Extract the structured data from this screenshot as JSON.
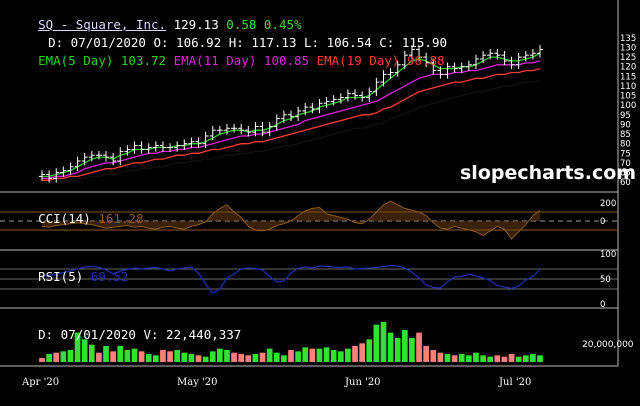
{
  "header": {
    "ticker": "SQ - Square, Inc.",
    "last": "129.13",
    "change": "0.58",
    "change_pct": "0.45%",
    "date_label": "D: 07/01/2020",
    "open": "O: 106.92",
    "high": "H: 117.13",
    "low": "L: 106.54",
    "close": "C: 115.90",
    "ema5_label": "EMA(5 Day)",
    "ema5_value": "103.72",
    "ema11_label": "EMA(11 Day)",
    "ema11_value": "100.85",
    "ema19_label": "EMA(19 Day)",
    "ema19_value": "96.88"
  },
  "watermark": "slopecharts.com",
  "cci": {
    "label": "CCI(14)",
    "value": "161.28",
    "ticks": [
      "200",
      "0"
    ]
  },
  "rsi": {
    "label": "RSI(5)",
    "value": "69.52",
    "ticks": [
      "100",
      "50",
      "0"
    ]
  },
  "volume_panel": {
    "label": "D: 07/01/2020",
    "volume_label": "V: 22,440,337",
    "scale_label": "20,000,000"
  },
  "x_labels": [
    "Apr '20",
    "May '20",
    "Jun '20",
    "Jul '20"
  ],
  "colors": {
    "ema5": "#2ecc2e",
    "ema11": "#e022e0",
    "ema19": "#ff3b3b",
    "ema_long": "#000000",
    "cci": "#8a5a1a",
    "rsi": "#1f2fb0",
    "vol_up": "#33e033",
    "vol_down": "#ff7f7f"
  },
  "chart_data": [
    {
      "type": "line",
      "title": "SQ - Square, Inc.",
      "y_ticks": [
        135,
        130,
        125,
        120,
        115,
        110,
        105,
        100,
        95,
        90,
        85,
        80,
        75,
        70,
        65,
        60
      ],
      "ylim": [
        58,
        137
      ],
      "series": [
        {
          "name": "Price",
          "style": "bars",
          "values": [
            64,
            62,
            65,
            66,
            68,
            71,
            73,
            74,
            74,
            73,
            71,
            76,
            77,
            79,
            77,
            78,
            79,
            78,
            78,
            79,
            80,
            81,
            80,
            84,
            87,
            87,
            88,
            88,
            87,
            86,
            89,
            86,
            89,
            93,
            95,
            94,
            97,
            99,
            98,
            101,
            102,
            103,
            104,
            106,
            105,
            104,
            107,
            112,
            116,
            117,
            121,
            126,
            129,
            125,
            122,
            118,
            116,
            120,
            119,
            120,
            121,
            124,
            126,
            127,
            126,
            123,
            121,
            125,
            126,
            127,
            129
          ]
        },
        {
          "name": "EMA(5 Day)",
          "values": [
            63,
            63,
            64,
            65,
            66,
            68,
            70,
            72,
            73,
            73,
            72,
            74,
            75,
            77,
            77,
            77,
            78,
            78,
            78,
            79,
            79,
            80,
            80,
            81,
            83,
            85,
            86,
            87,
            87,
            86,
            87,
            87,
            88,
            90,
            92,
            93,
            95,
            96,
            97,
            99,
            100,
            101,
            102,
            104,
            104,
            104,
            105,
            108,
            111,
            114,
            117,
            120,
            123,
            124,
            123,
            121,
            119,
            119,
            119,
            120,
            120,
            121,
            123,
            125,
            125,
            124,
            123,
            123,
            124,
            125,
            127
          ]
        },
        {
          "name": "EMA(11 Day)",
          "values": [
            62,
            62,
            63,
            63,
            64,
            65,
            67,
            68,
            69,
            70,
            70,
            71,
            72,
            73,
            74,
            75,
            75,
            76,
            76,
            77,
            77,
            78,
            78,
            79,
            80,
            81,
            82,
            83,
            84,
            84,
            85,
            85,
            86,
            87,
            88,
            89,
            90,
            92,
            93,
            94,
            95,
            96,
            97,
            98,
            99,
            100,
            101,
            102,
            104,
            106,
            108,
            110,
            112,
            114,
            115,
            116,
            116,
            116,
            117,
            117,
            118,
            118,
            119,
            120,
            121,
            121,
            121,
            121,
            122,
            122,
            123
          ]
        },
        {
          "name": "EMA(19 Day)",
          "values": [
            61,
            61,
            62,
            62,
            63,
            63,
            64,
            65,
            66,
            67,
            67,
            68,
            69,
            70,
            70,
            71,
            72,
            72,
            73,
            74,
            74,
            75,
            75,
            76,
            77,
            77,
            78,
            79,
            80,
            80,
            81,
            81,
            82,
            83,
            84,
            85,
            86,
            87,
            88,
            89,
            90,
            91,
            92,
            93,
            94,
            95,
            95,
            96,
            98,
            99,
            101,
            103,
            105,
            107,
            108,
            109,
            110,
            111,
            112,
            112,
            113,
            114,
            114,
            115,
            116,
            116,
            117,
            117,
            118,
            118,
            119
          ]
        },
        {
          "name": "",
          "values": [
            60,
            60,
            60,
            61,
            61,
            62,
            62,
            63,
            63,
            64,
            64,
            65,
            66,
            66,
            67,
            67,
            68,
            68,
            69,
            70,
            70,
            71,
            71,
            72,
            72,
            73,
            74,
            74,
            75,
            75,
            76,
            76,
            77,
            78,
            79,
            79,
            80,
            81,
            82,
            83,
            84,
            85,
            86,
            87,
            88,
            88,
            89,
            90,
            91,
            93,
            94,
            96,
            97,
            99,
            100,
            101,
            102,
            103,
            104,
            105,
            106,
            107,
            107,
            108,
            109,
            110,
            110,
            111,
            112,
            112,
            113
          ]
        }
      ]
    },
    {
      "type": "area",
      "title": "CCI(14)",
      "ylim": [
        -300,
        300
      ],
      "y_ticks": [
        200,
        0
      ],
      "values": [
        -60,
        -70,
        -50,
        -40,
        -30,
        -20,
        -30,
        -40,
        -60,
        -80,
        -70,
        -60,
        -50,
        -70,
        -60,
        -80,
        -90,
        -70,
        -60,
        -80,
        -90,
        -60,
        -40,
        -10,
        80,
        140,
        180,
        100,
        40,
        -60,
        -100,
        -110,
        -90,
        -50,
        -30,
        0,
        60,
        110,
        140,
        150,
        80,
        60,
        40,
        20,
        -20,
        -30,
        20,
        100,
        180,
        220,
        180,
        140,
        120,
        100,
        60,
        -20,
        -80,
        -90,
        -60,
        -80,
        -100,
        -120,
        -160,
        -110,
        -60,
        -90,
        -200,
        -120,
        -40,
        60,
        120
      ]
    },
    {
      "type": "line",
      "title": "RSI(5)",
      "ylim": [
        0,
        100
      ],
      "y_ticks": [
        100,
        50,
        0
      ],
      "values": [
        55,
        57,
        60,
        63,
        66,
        70,
        74,
        75,
        73,
        68,
        60,
        66,
        69,
        72,
        70,
        72,
        73,
        70,
        66,
        70,
        72,
        74,
        62,
        40,
        22,
        30,
        52,
        60,
        70,
        72,
        71,
        68,
        55,
        44,
        46,
        62,
        71,
        74,
        72,
        76,
        75,
        74,
        73,
        74,
        70,
        71,
        72,
        73,
        75,
        77,
        76,
        72,
        64,
        52,
        38,
        33,
        32,
        44,
        54,
        55,
        60,
        56,
        52,
        47,
        37,
        34,
        31,
        36,
        48,
        55,
        69
      ]
    },
    {
      "type": "bar",
      "title": "Volume",
      "values": [
        3,
        6,
        7,
        8,
        9,
        22,
        17,
        13,
        7,
        12,
        8,
        12,
        9,
        10,
        8,
        6,
        5,
        9,
        8,
        9,
        7,
        6,
        5,
        4,
        8,
        10,
        9,
        7,
        6,
        5,
        6,
        7,
        10,
        7,
        5,
        9,
        8,
        11,
        10,
        10,
        11,
        9,
        8,
        10,
        12,
        14,
        17,
        28,
        30,
        22,
        18,
        24,
        18,
        22,
        12,
        9,
        7,
        6,
        5,
        6,
        5,
        7,
        5,
        4,
        5,
        4,
        6,
        4,
        5,
        6,
        5
      ],
      "up": [
        0,
        1,
        0,
        1,
        1,
        1,
        1,
        1,
        0,
        1,
        0,
        1,
        1,
        1,
        0,
        1,
        1,
        0,
        0,
        1,
        1,
        1,
        0,
        1,
        1,
        1,
        1,
        0,
        0,
        0,
        1,
        0,
        1,
        1,
        1,
        0,
        1,
        1,
        0,
        1,
        1,
        1,
        1,
        1,
        0,
        0,
        1,
        1,
        1,
        1,
        1,
        1,
        1,
        0,
        0,
        0,
        0,
        1,
        0,
        1,
        1,
        1,
        1,
        1,
        0,
        0,
        0,
        1,
        1,
        1,
        1
      ]
    }
  ]
}
